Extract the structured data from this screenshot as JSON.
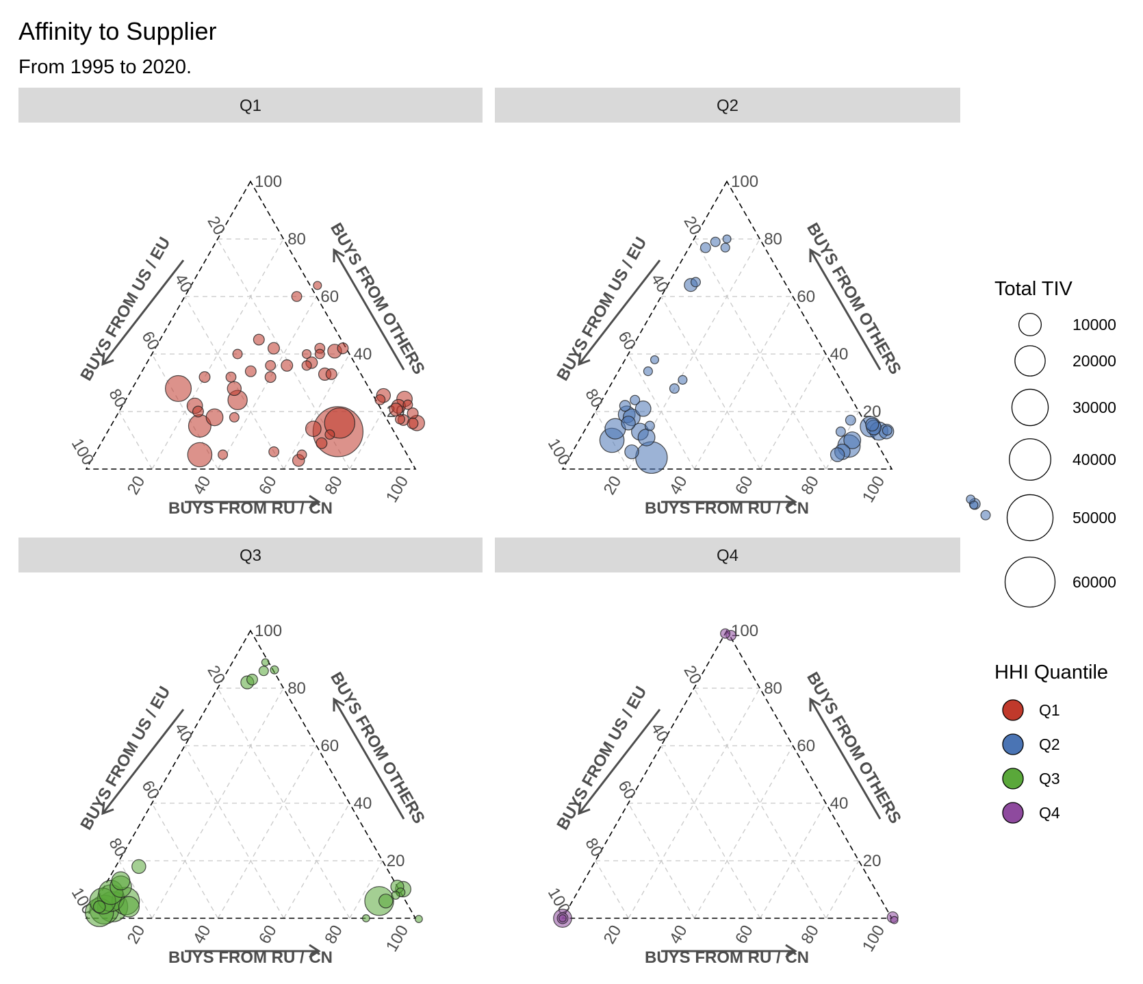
{
  "title": "Affinity to Supplier",
  "subtitle": "From 1995 to 2020.",
  "chart_data": {
    "type": "scatter",
    "subtype": "ternary",
    "title": "Affinity to Supplier",
    "subtitle": "From 1995 to 2020.",
    "axes": {
      "bottom": "BUYS FROM RU / CN",
      "left": "BUYS FROM US / EU",
      "right": "BUYS FROM OTHERS"
    },
    "ticks": [
      "20",
      "40",
      "60",
      "80",
      "100"
    ],
    "grid": true,
    "legend_position": "right",
    "size_legend": {
      "title": "Total TIV",
      "breaks": [
        10000,
        20000,
        30000,
        40000,
        50000,
        60000
      ],
      "labels": [
        "10000",
        "20000",
        "30000",
        "40000",
        "50000",
        "60000"
      ]
    },
    "color_legend": {
      "title": "HHI Quantile",
      "items": [
        {
          "label": "Q1",
          "color": "#c0392b"
        },
        {
          "label": "Q2",
          "color": "#4a74b4"
        },
        {
          "label": "Q3",
          "color": "#5aa83a"
        },
        {
          "label": "Q4",
          "color": "#8e4a9e"
        }
      ]
    },
    "panels": [
      {
        "label": "Q1",
        "color": "#c0392b",
        "points": [
          {
            "ru_cn": 14,
            "others": 28,
            "tiv": 14000
          },
          {
            "ru_cn": 20,
            "others": 32,
            "tiv": 1500
          },
          {
            "ru_cn": 22,
            "others": 22,
            "tiv": 4000
          },
          {
            "ru_cn": 24,
            "others": 20,
            "tiv": 1500
          },
          {
            "ru_cn": 26,
            "others": 40,
            "tiv": 1000
          },
          {
            "ru_cn": 27,
            "others": 15,
            "tiv": 10000
          },
          {
            "ru_cn": 28,
            "others": 32,
            "tiv": 1200
          },
          {
            "ru_cn": 30,
            "others": 45,
            "tiv": 1500
          },
          {
            "ru_cn": 30,
            "others": 18,
            "tiv": 5000
          },
          {
            "ru_cn": 31,
            "others": 28,
            "tiv": 3000
          },
          {
            "ru_cn": 32,
            "others": 5,
            "tiv": 12000
          },
          {
            "ru_cn": 33,
            "others": 34,
            "tiv": 1500
          },
          {
            "ru_cn": 34,
            "others": 24,
            "tiv": 7000
          },
          {
            "ru_cn": 36,
            "others": 18,
            "tiv": 1000
          },
          {
            "ru_cn": 36,
            "others": 42,
            "tiv": 1800
          },
          {
            "ru_cn": 38,
            "others": 36,
            "tiv": 1200
          },
          {
            "ru_cn": 39,
            "others": 5,
            "tiv": 1000
          },
          {
            "ru_cn": 40,
            "others": 32,
            "tiv": 1500
          },
          {
            "ru_cn": 43,
            "others": 36,
            "tiv": 1800
          },
          {
            "ru_cn": 47,
            "others": 40,
            "tiv": 800
          },
          {
            "ru_cn": 49,
            "others": 36,
            "tiv": 1000
          },
          {
            "ru_cn": 50,
            "others": 42,
            "tiv": 1200
          },
          {
            "ru_cn": 50,
            "others": 37,
            "tiv": 1800
          },
          {
            "ru_cn": 51,
            "others": 40,
            "tiv": 1000
          },
          {
            "ru_cn": 55,
            "others": 41,
            "tiv": 3000
          },
          {
            "ru_cn": 57,
            "others": 42,
            "tiv": 1500
          },
          {
            "ru_cn": 56,
            "others": 33,
            "tiv": 2200
          },
          {
            "ru_cn": 58,
            "others": 33,
            "tiv": 1500
          },
          {
            "ru_cn": 63,
            "others": 3,
            "tiv": 2000
          },
          {
            "ru_cn": 62,
            "others": 14,
            "tiv": 4000
          },
          {
            "ru_cn": 67,
            "others": 9,
            "tiv": 1500
          },
          {
            "ru_cn": 63,
            "others": 5,
            "tiv": 1000
          },
          {
            "ru_cn": 70,
            "others": 13,
            "tiv": 60000
          },
          {
            "ru_cn": 69,
            "others": 16,
            "tiv": 20000
          },
          {
            "ru_cn": 68,
            "others": 12,
            "tiv": 1000
          },
          {
            "ru_cn": 54,
            "others": 6,
            "tiv": 1200
          },
          {
            "ru_cn": 63,
            "others": 57,
            "tiv": 4000
          },
          {
            "ru_cn": 65,
            "others": 55,
            "tiv": 1000
          },
          {
            "ru_cn": 68,
            "others": 52,
            "tiv": 1500
          },
          {
            "ru_cn": 72,
            "others": 47,
            "tiv": 4000
          },
          {
            "ru_cn": 70,
            "others": 43,
            "tiv": 3000
          },
          {
            "ru_cn": 74,
            "others": 42,
            "tiv": 1500
          },
          {
            "ru_cn": 70,
            "others": 37,
            "tiv": 3000
          },
          {
            "ru_cn": 73,
            "others": 37,
            "tiv": 2500
          },
          {
            "ru_cn": 76,
            "others": 35,
            "tiv": 1500
          },
          {
            "ru_cn": 77,
            "others": 32,
            "tiv": 1000
          },
          {
            "ru_cn": 74,
            "others": 29,
            "tiv": 1200
          },
          {
            "ru_cn": 33,
            "others": 72,
            "tiv": 600
          },
          {
            "ru_cn": 34,
            "others": 60,
            "tiv": 1200
          }
        ]
      },
      {
        "label": "Q2",
        "color": "#4a74b4",
        "points": [
          {
            "ru_cn": 5,
            "others": 77,
            "tiv": 1200
          },
          {
            "ru_cn": 7,
            "others": 79,
            "tiv": 1000
          },
          {
            "ru_cn": 11,
            "others": 77,
            "tiv": 800
          },
          {
            "ru_cn": 10,
            "others": 80,
            "tiv": 600
          },
          {
            "ru_cn": 7,
            "others": 64,
            "tiv": 2500
          },
          {
            "ru_cn": 8,
            "others": 65,
            "tiv": 1000
          },
          {
            "ru_cn": 9,
            "others": 38,
            "tiv": 600
          },
          {
            "ru_cn": 9,
            "others": 34,
            "tiv": 800
          },
          {
            "ru_cn": 10,
            "others": 24,
            "tiv": 1000
          },
          {
            "ru_cn": 8,
            "others": 22,
            "tiv": 1500
          },
          {
            "ru_cn": 10,
            "others": 19,
            "tiv": 5000
          },
          {
            "ru_cn": 12,
            "others": 18,
            "tiv": 5000
          },
          {
            "ru_cn": 14,
            "others": 21,
            "tiv": 4000
          },
          {
            "ru_cn": 9,
            "others": 14,
            "tiv": 8000
          },
          {
            "ru_cn": 10,
            "others": 10,
            "tiv": 12000
          },
          {
            "ru_cn": 12,
            "others": 16,
            "tiv": 3000
          },
          {
            "ru_cn": 17,
            "others": 13,
            "tiv": 5000
          },
          {
            "ru_cn": 20,
            "others": 11,
            "tiv": 5000
          },
          {
            "ru_cn": 18,
            "others": 6,
            "tiv": 3000
          },
          {
            "ru_cn": 25,
            "others": 4,
            "tiv": 22000
          },
          {
            "ru_cn": 19,
            "others": 15,
            "tiv": 1000
          },
          {
            "ru_cn": 20,
            "others": 28,
            "tiv": 1000
          },
          {
            "ru_cn": 21,
            "others": 31,
            "tiv": 800
          },
          {
            "ru_cn": 85,
            "others": 58,
            "tiv": 1500
          },
          {
            "ru_cn": 87,
            "others": 59,
            "tiv": 1000
          },
          {
            "ru_cn": 86,
            "others": 56,
            "tiv": 600
          },
          {
            "ru_cn": 84,
            "others": 58,
            "tiv": 700
          },
          {
            "ru_cn": 78,
            "others": 13,
            "tiv": 1000
          },
          {
            "ru_cn": 79,
            "others": 17,
            "tiv": 1200
          },
          {
            "ru_cn": 79,
            "others": 33,
            "tiv": 1000
          },
          {
            "ru_cn": 80,
            "others": 31,
            "tiv": 3500
          },
          {
            "ru_cn": 82,
            "others": 22,
            "tiv": 2500
          },
          {
            "ru_cn": 83,
            "others": 23,
            "tiv": 6000
          },
          {
            "ru_cn": 83,
            "others": 21,
            "tiv": 3500
          },
          {
            "ru_cn": 84,
            "others": 18,
            "tiv": 8000
          },
          {
            "ru_cn": 83,
            "others": 10,
            "tiv": 5000
          },
          {
            "ru_cn": 83,
            "others": 8,
            "tiv": 10000
          },
          {
            "ru_cn": 82,
            "others": 6,
            "tiv": 4000
          },
          {
            "ru_cn": 81,
            "others": 5,
            "tiv": 3000
          }
        ]
      },
      {
        "label": "Q3",
        "color": "#5aa83a",
        "points": [
          {
            "ru_cn": 10,
            "others": 89,
            "tiv": 400
          },
          {
            "ru_cn": 13,
            "others": 88,
            "tiv": 600
          },
          {
            "ru_cn": 11,
            "others": 86,
            "tiv": 1000
          },
          {
            "ru_cn": 9,
            "others": 83,
            "tiv": 1500
          },
          {
            "ru_cn": 8,
            "others": 82,
            "tiv": 2500
          },
          {
            "ru_cn": 7,
            "others": 18,
            "tiv": 3000
          },
          {
            "ru_cn": 4,
            "others": 13,
            "tiv": 6000
          },
          {
            "ru_cn": 5,
            "others": 11,
            "tiv": 9000
          },
          {
            "ru_cn": 3,
            "others": 9,
            "tiv": 12000
          },
          {
            "ru_cn": 4,
            "others": 7,
            "tiv": 15000
          },
          {
            "ru_cn": 2,
            "others": 6,
            "tiv": 14000
          },
          {
            "ru_cn": 9,
            "others": 6,
            "tiv": 16000
          },
          {
            "ru_cn": 6,
            "others": 4,
            "tiv": 20000
          },
          {
            "ru_cn": 4,
            "others": 3,
            "tiv": 18000
          },
          {
            "ru_cn": 3,
            "others": 2,
            "tiv": 17000
          },
          {
            "ru_cn": 11,
            "others": 4,
            "tiv": 8000
          },
          {
            "ru_cn": 2,
            "others": 4,
            "tiv": 2000
          },
          {
            "ru_cn": 86,
            "others": 6,
            "tiv": 18000
          },
          {
            "ru_cn": 88,
            "others": 15,
            "tiv": 4000
          },
          {
            "ru_cn": 89,
            "others": 11,
            "tiv": 2500
          },
          {
            "ru_cn": 91,
            "others": 9,
            "tiv": 800
          },
          {
            "ru_cn": 90,
            "others": 8,
            "tiv": 600
          },
          {
            "ru_cn": 88,
            "others": 6,
            "tiv": 3000
          },
          {
            "ru_cn": 85,
            "others": 0,
            "tiv": 400
          },
          {
            "ru_cn": 99,
            "others": 3,
            "tiv": 400
          }
        ]
      },
      {
        "label": "Q4",
        "color": "#8e4a9e",
        "points": [
          {
            "ru_cn": 0,
            "others": 99,
            "tiv": 1000
          },
          {
            "ru_cn": 1,
            "others": 100,
            "tiv": 1200
          },
          {
            "ru_cn": 0,
            "others": 0,
            "tiv": 6000
          },
          {
            "ru_cn": 0,
            "others": 0,
            "tiv": 1500
          },
          {
            "ru_cn": 0,
            "others": 0,
            "tiv": 400
          },
          {
            "ru_cn": 99,
            "others": 2,
            "tiv": 1500
          },
          {
            "ru_cn": 100,
            "others": 1,
            "tiv": 400
          }
        ]
      }
    ]
  }
}
